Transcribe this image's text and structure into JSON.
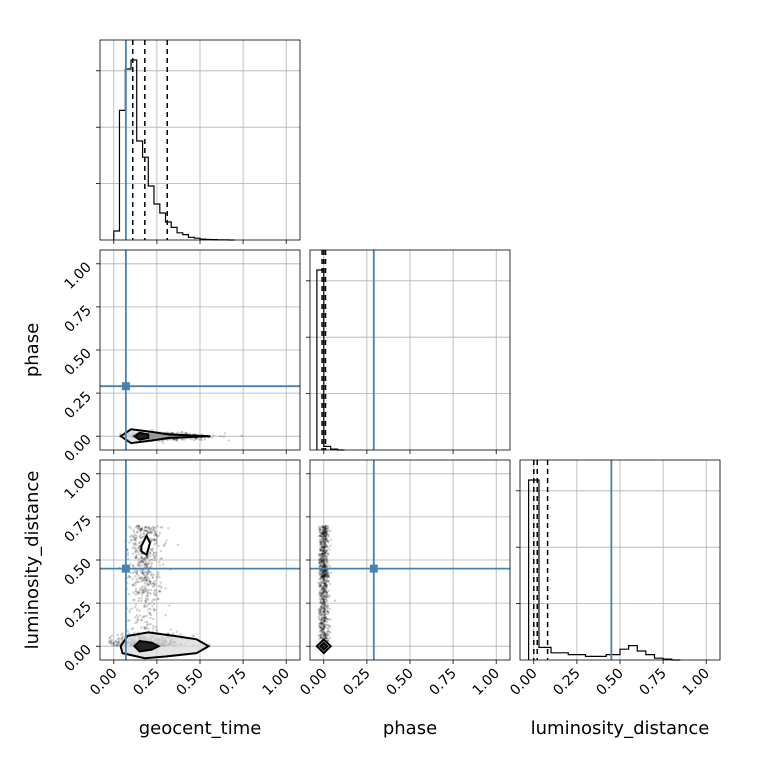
{
  "chart_data": {
    "type": "corner",
    "parameters": [
      "geocent_time",
      "phase",
      "luminosity_distance"
    ],
    "tick_labels": [
      "0.00",
      "0.25",
      "0.50",
      "0.75",
      "1.00"
    ],
    "ticks": [
      0,
      0.25,
      0.5,
      0.75,
      1.0
    ],
    "axis_range": [
      -0.08,
      1.08
    ],
    "grid": true,
    "truth_color": "#4682b4",
    "truths": {
      "geocent_time": 0.07,
      "phase": 0.29,
      "luminosity_distance": 0.45
    },
    "histograms": {
      "geocent_time": {
        "bin_edges": [
          0.0,
          0.033,
          0.067,
          0.1,
          0.133,
          0.167,
          0.2,
          0.233,
          0.267,
          0.3,
          0.333,
          0.367,
          0.4,
          0.433,
          0.467,
          0.5,
          0.533,
          0.567,
          0.6,
          0.633,
          0.667,
          0.7
        ],
        "counts": [
          0.05,
          0.72,
          0.95,
          1.0,
          0.55,
          0.46,
          0.3,
          0.2,
          0.15,
          0.1,
          0.07,
          0.04,
          0.03,
          0.015,
          0.01,
          0.005,
          0.003,
          0.002,
          0.001,
          0.001,
          0.0
        ],
        "quantiles": [
          0.11,
          0.18,
          0.31
        ]
      },
      "phase": {
        "bin_edges": [
          -0.04,
          0.0,
          0.04,
          0.08,
          0.12
        ],
        "counts": [
          1.0,
          0.02,
          0.005,
          0.0
        ],
        "quantiles": [
          -0.01,
          0.0,
          0.01
        ]
      },
      "luminosity_distance": {
        "bin_edges": [
          -0.03,
          0.03,
          0.1,
          0.2,
          0.3,
          0.42,
          0.5,
          0.55,
          0.6,
          0.65,
          0.7,
          0.75,
          0.8,
          0.85
        ],
        "counts": [
          1.0,
          0.07,
          0.04,
          0.03,
          0.02,
          0.03,
          0.06,
          0.08,
          0.05,
          0.03,
          0.01,
          0.005,
          0.0
        ],
        "quantiles": [
          0.0,
          0.02,
          0.08
        ]
      }
    },
    "panels_2d": [
      {
        "x": "geocent_time",
        "y": "phase",
        "samples_center": [
          0.18,
          0.0
        ],
        "samples_spread": [
          0.14,
          0.01
        ],
        "outer_contour": [
          [
            0.04,
            0.0
          ],
          [
            0.1,
            0.04
          ],
          [
            0.22,
            0.025
          ],
          [
            0.32,
            0.01
          ],
          [
            0.56,
            0.0
          ],
          [
            0.32,
            -0.01
          ],
          [
            0.22,
            -0.025
          ],
          [
            0.1,
            -0.04
          ]
        ],
        "inner_contour": [
          [
            0.12,
            0.0
          ],
          [
            0.15,
            0.02
          ],
          [
            0.2,
            0.01
          ],
          [
            0.2,
            -0.01
          ],
          [
            0.15,
            -0.02
          ]
        ]
      },
      {
        "x": "geocent_time",
        "y": "luminosity_distance",
        "samples_center": [
          0.18,
          0.0
        ],
        "samples_spread": [
          0.14,
          0.25
        ],
        "outer_contour": [
          [
            0.04,
            0.0
          ],
          [
            0.08,
            0.06
          ],
          [
            0.2,
            0.08
          ],
          [
            0.35,
            0.06
          ],
          [
            0.48,
            0.04
          ],
          [
            0.55,
            0.0
          ],
          [
            0.48,
            -0.04
          ],
          [
            0.3,
            -0.06
          ],
          [
            0.18,
            -0.07
          ],
          [
            0.05,
            -0.04
          ]
        ],
        "inner_contour": [
          [
            0.12,
            0.0
          ],
          [
            0.15,
            0.03
          ],
          [
            0.22,
            0.02
          ],
          [
            0.26,
            0.0
          ],
          [
            0.22,
            -0.02
          ],
          [
            0.15,
            -0.03
          ]
        ],
        "island_contour": [
          [
            0.16,
            0.58
          ],
          [
            0.19,
            0.64
          ],
          [
            0.21,
            0.6
          ],
          [
            0.19,
            0.53
          ],
          [
            0.16,
            0.55
          ]
        ]
      },
      {
        "x": "phase",
        "y": "luminosity_distance",
        "samples_center": [
          0.0,
          0.55
        ],
        "samples_spread": [
          0.015,
          0.15
        ],
        "outer_contour": [
          [
            -0.04,
            0.0
          ],
          [
            0.0,
            0.04
          ],
          [
            0.04,
            0.0
          ],
          [
            0.0,
            -0.04
          ]
        ],
        "inner_contour": [
          [
            -0.02,
            0.0
          ],
          [
            0.0,
            0.02
          ],
          [
            0.02,
            0.0
          ],
          [
            0.0,
            -0.02
          ]
        ]
      }
    ]
  }
}
